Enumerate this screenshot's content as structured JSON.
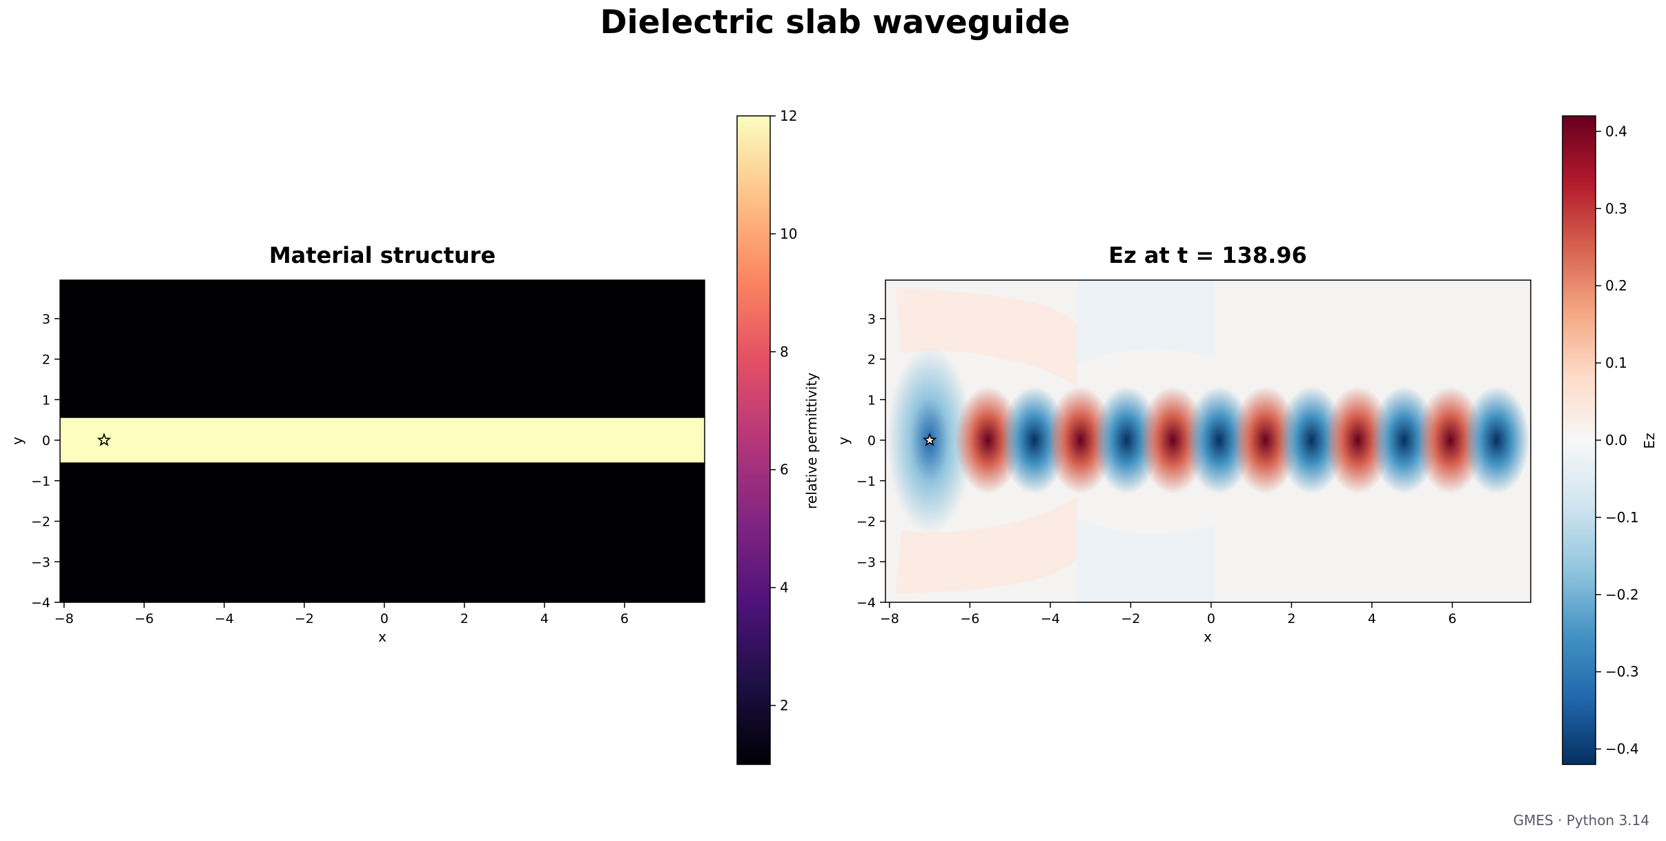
{
  "figure_title": "Dielectric slab waveguide",
  "footer": "GMES · Python 3.14",
  "colormaps": {
    "magma": [
      "#000004",
      "#1c1044",
      "#4f127b",
      "#812581",
      "#b5367a",
      "#e55064",
      "#fb8761",
      "#fec287",
      "#fcfdbf"
    ],
    "RdBu_r": [
      "#053061",
      "#2166ac",
      "#4393c3",
      "#92c5de",
      "#d1e5f0",
      "#f7f7f7",
      "#fddbc7",
      "#f4a582",
      "#d6604d",
      "#b2182b",
      "#67001f"
    ]
  },
  "chart_data": [
    {
      "type": "heatmap",
      "title": "Material structure",
      "xlabel": "x",
      "ylabel": "y",
      "xlim": [
        -8.1,
        8.0
      ],
      "ylim": [
        -4.0,
        3.95
      ],
      "xticks": [
        "−8",
        "−6",
        "−4",
        "−2",
        "0",
        "2",
        "4",
        "6"
      ],
      "xtick_values": [
        -8,
        -6,
        -4,
        -2,
        0,
        2,
        4,
        6
      ],
      "yticks": [
        "−4",
        "−3",
        "−2",
        "−1",
        "0",
        "1",
        "2",
        "3"
      ],
      "ytick_values": [
        -4,
        -3,
        -2,
        -1,
        0,
        1,
        2,
        3
      ],
      "background_permittivity": 1,
      "slab": {
        "y_min": -0.55,
        "y_max": 0.55,
        "permittivity": 12
      },
      "source_marker": {
        "x": -7.0,
        "y": 0.0,
        "symbol": "star"
      },
      "colormap": "magma",
      "colorbar": {
        "label": "relative permittivity",
        "range": [
          1,
          12
        ],
        "ticks": [
          "2",
          "4",
          "6",
          "8",
          "10",
          "12"
        ],
        "tick_values": [
          2,
          4,
          6,
          8,
          10,
          12
        ]
      }
    },
    {
      "type": "heatmap",
      "title": "Ez at t = 138.96",
      "xlabel": "x",
      "ylabel": "y",
      "xlim": [
        -8.1,
        7.95
      ],
      "ylim": [
        -4.0,
        3.95
      ],
      "xticks": [
        "−8",
        "−6",
        "−4",
        "−2",
        "0",
        "2",
        "4",
        "6"
      ],
      "xtick_values": [
        -8,
        -6,
        -4,
        -2,
        0,
        2,
        4,
        6
      ],
      "yticks": [
        "−4",
        "−3",
        "−2",
        "−1",
        "0",
        "1",
        "2",
        "3"
      ],
      "ytick_values": [
        -4,
        -3,
        -2,
        -1,
        0,
        1,
        2,
        3
      ],
      "field_lobes": [
        {
          "x": -7.0,
          "value": -0.36
        },
        {
          "x": -5.55,
          "value": 0.41
        },
        {
          "x": -4.4,
          "value": -0.41
        },
        {
          "x": -3.25,
          "value": 0.41
        },
        {
          "x": -2.1,
          "value": -0.41
        },
        {
          "x": -0.95,
          "value": 0.41
        },
        {
          "x": 0.2,
          "value": -0.41
        },
        {
          "x": 1.35,
          "value": 0.41
        },
        {
          "x": 2.5,
          "value": -0.41
        },
        {
          "x": 3.65,
          "value": 0.41
        },
        {
          "x": 4.8,
          "value": -0.41
        },
        {
          "x": 5.95,
          "value": 0.41
        },
        {
          "x": 7.1,
          "value": -0.41
        }
      ],
      "source_marker": {
        "x": -7.0,
        "y": 0.0,
        "symbol": "star"
      },
      "colormap": "RdBu_r",
      "colorbar": {
        "label": "Ez",
        "range": [
          -0.42,
          0.42
        ],
        "ticks": [
          "−0.4",
          "−0.3",
          "−0.2",
          "−0.1",
          "0.0",
          "0.1",
          "0.2",
          "0.3",
          "0.4"
        ],
        "tick_values": [
          -0.4,
          -0.3,
          -0.2,
          -0.1,
          0.0,
          0.1,
          0.2,
          0.3,
          0.4
        ]
      }
    }
  ]
}
